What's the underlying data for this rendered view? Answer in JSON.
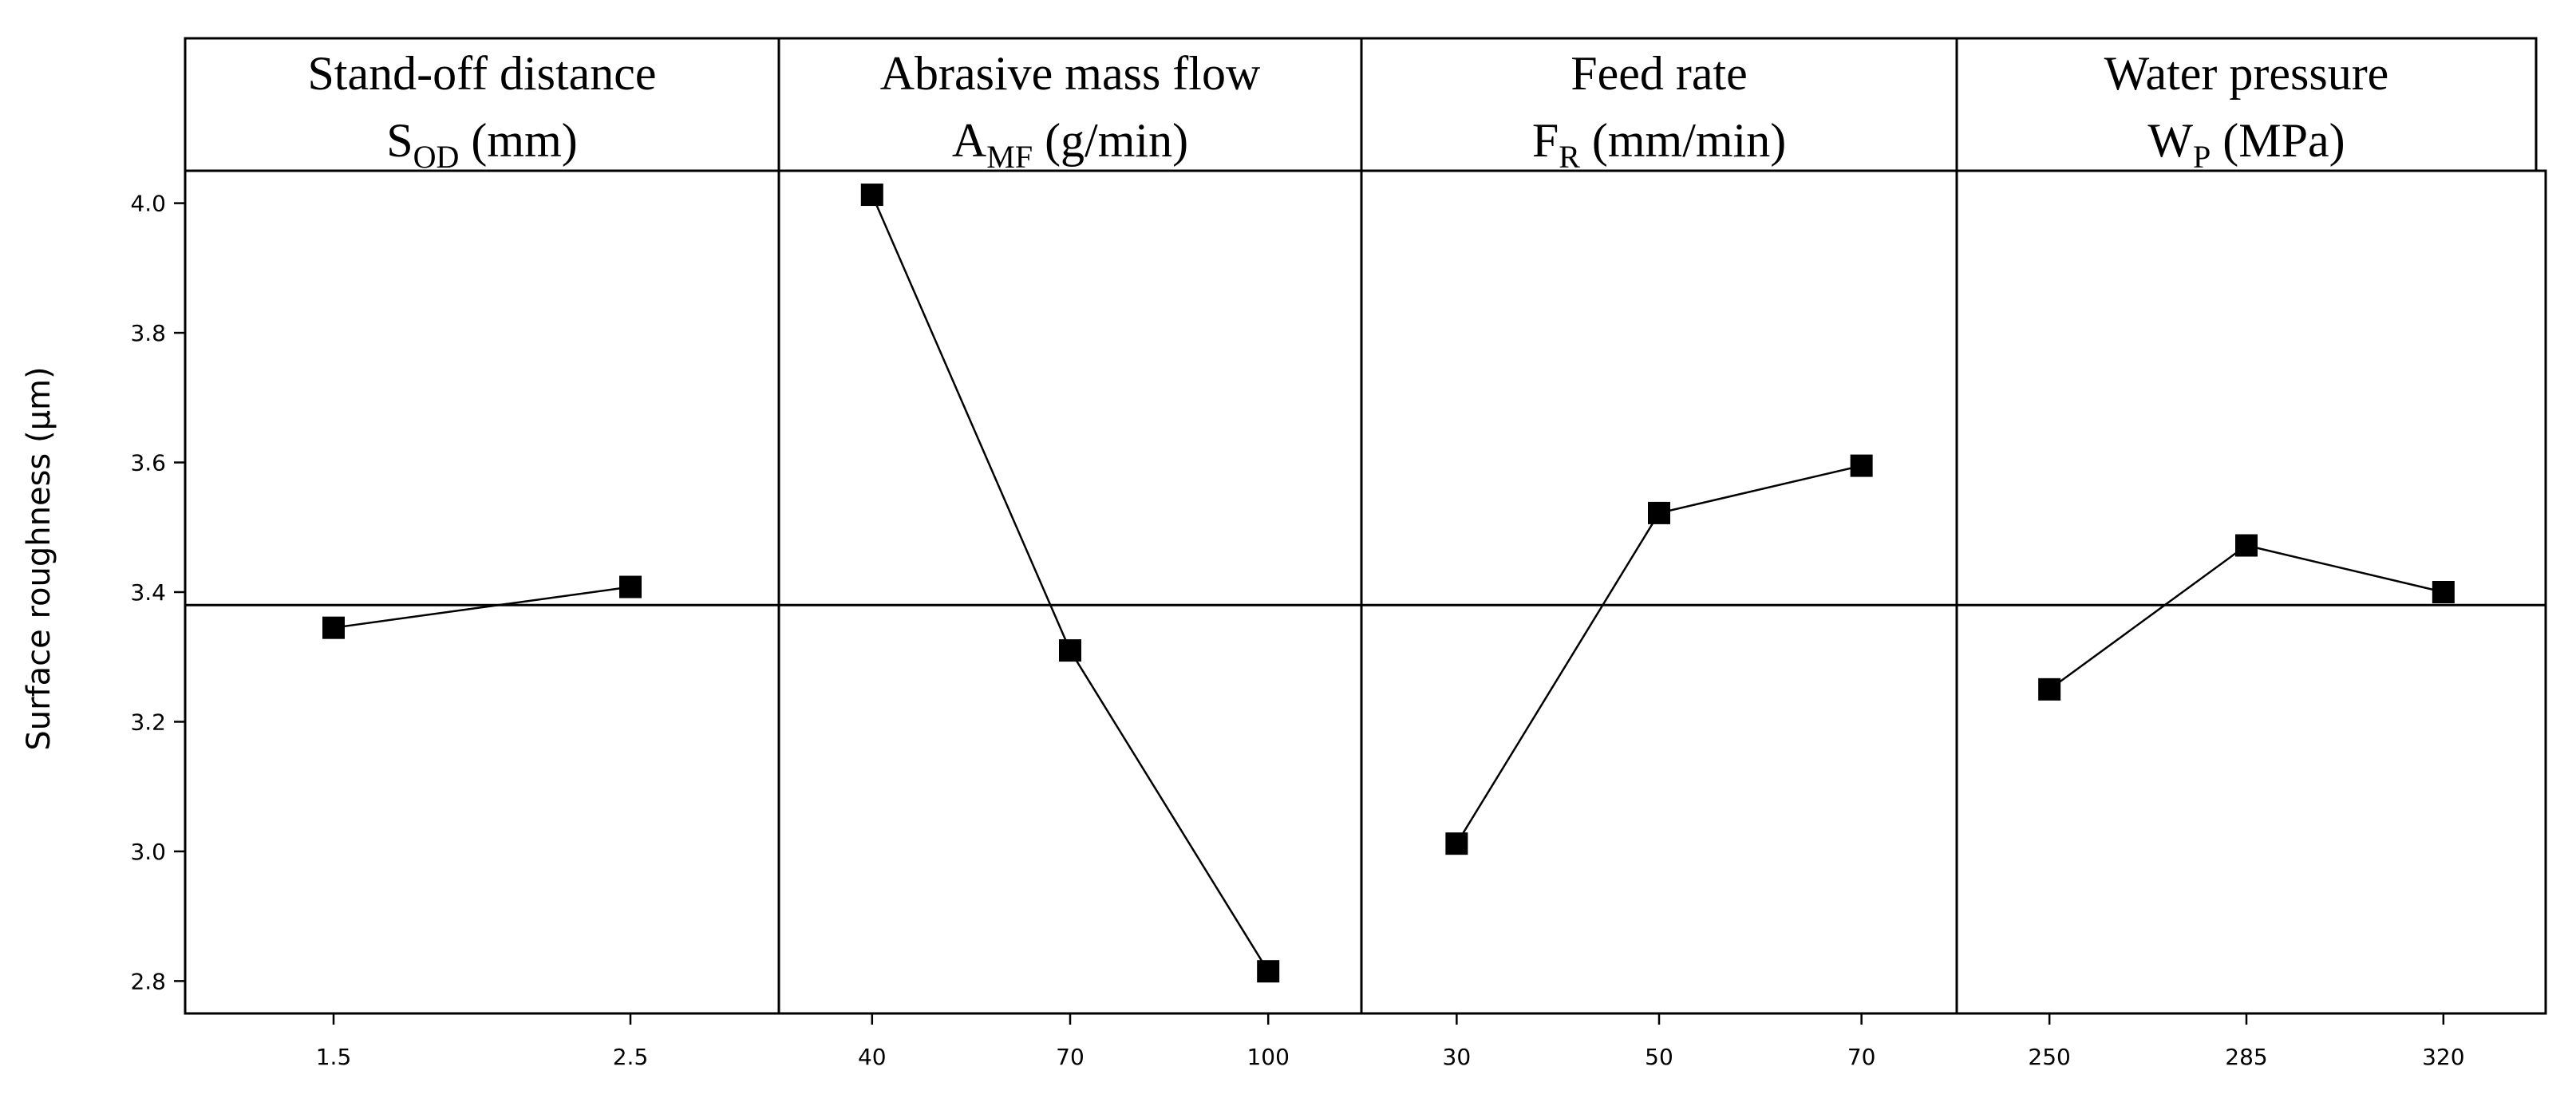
{
  "chart_data": {
    "type": "line",
    "title": "",
    "ylabel": "Surface roughness (µm)",
    "ylim": [
      2.75,
      4.05
    ],
    "yticks": [
      2.8,
      3.0,
      3.2,
      3.4,
      3.6,
      3.8,
      4.0
    ],
    "ytick_labels": [
      "2.8",
      "3.0",
      "3.2",
      "3.4",
      "3.6",
      "3.8",
      "4.0"
    ],
    "reference_line": 3.38,
    "grid": false,
    "panels": [
      {
        "title_line1": "Stand-off distance",
        "symbol": "S",
        "subscript": "OD",
        "unit": "(mm)",
        "categories": [
          "1.5",
          "2.5"
        ],
        "values": [
          3.345,
          3.408
        ]
      },
      {
        "title_line1": "Abrasive mass flow",
        "symbol": "A",
        "subscript": "MF",
        "unit": "(g/min)",
        "categories": [
          "40",
          "70",
          "100"
        ],
        "values": [
          4.013,
          3.31,
          2.815
        ]
      },
      {
        "title_line1": "Feed rate",
        "symbol": "F",
        "subscript": "R",
        "unit": "(mm/min)",
        "categories": [
          "30",
          "50",
          "70"
        ],
        "values": [
          3.012,
          3.522,
          3.595
        ]
      },
      {
        "title_line1": "Water pressure",
        "symbol": "W",
        "subscript": "P",
        "unit": "(MPa)",
        "categories": [
          "250",
          "285",
          "320"
        ],
        "values": [
          3.25,
          3.472,
          3.4
        ]
      }
    ]
  }
}
